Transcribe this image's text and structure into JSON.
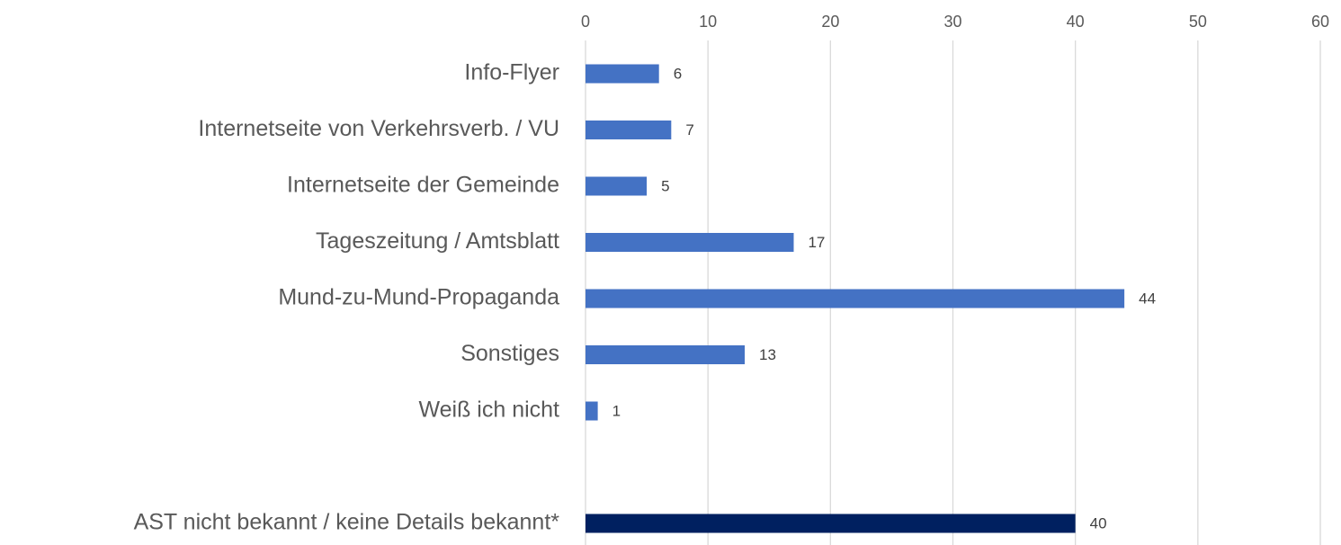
{
  "chart_data": {
    "type": "barh",
    "categories": [
      "Info-Flyer",
      "Internetseite von Verkehrsverb. / VU",
      "Internetseite der Gemeinde",
      "Tageszeitung / Amtsblatt",
      "Mund-zu-Mund-Propaganda",
      "Sonstiges",
      "Weiß ich nicht",
      null,
      "AST nicht bekannt / keine Details bekannt*"
    ],
    "values": [
      6,
      7,
      5,
      17,
      44,
      13,
      1,
      null,
      40
    ],
    "colors": [
      "#4472c4",
      "#4472c4",
      "#4472c4",
      "#4472c4",
      "#4472c4",
      "#4472c4",
      "#4472c4",
      null,
      "#002060"
    ],
    "xlim": [
      0,
      60
    ],
    "xticks": [
      0,
      10,
      20,
      30,
      40,
      50,
      60
    ],
    "grid": true
  }
}
